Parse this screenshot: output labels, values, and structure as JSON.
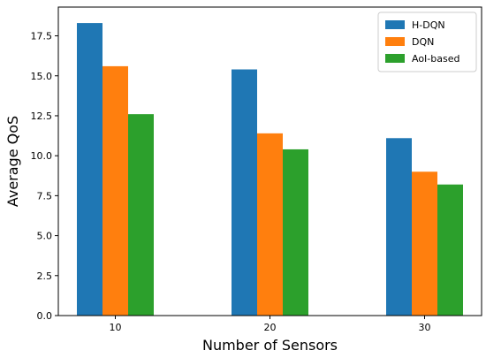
{
  "chart_data": {
    "type": "bar",
    "title": "",
    "xlabel": "Number of Sensors",
    "ylabel": "Average QoS",
    "categories": [
      "10",
      "20",
      "30"
    ],
    "ylim": [
      0,
      19.3
    ],
    "yticks": [
      0.0,
      2.5,
      5.0,
      7.5,
      10.0,
      12.5,
      15.0,
      17.5
    ],
    "ytick_labels": [
      "0.0",
      "2.5",
      "5.0",
      "7.5",
      "10.0",
      "12.5",
      "15.0",
      "17.5"
    ],
    "grid": false,
    "legend_position": "top-right",
    "series": [
      {
        "name": "H-DQN",
        "color": "#1f77b4",
        "values": [
          18.3,
          15.4,
          11.1
        ]
      },
      {
        "name": "DQN",
        "color": "#ff7f0e",
        "values": [
          15.6,
          11.4,
          9.0
        ]
      },
      {
        "name": "AoI-based",
        "color": "#2ca02c",
        "values": [
          12.6,
          10.4,
          8.2
        ]
      }
    ]
  }
}
